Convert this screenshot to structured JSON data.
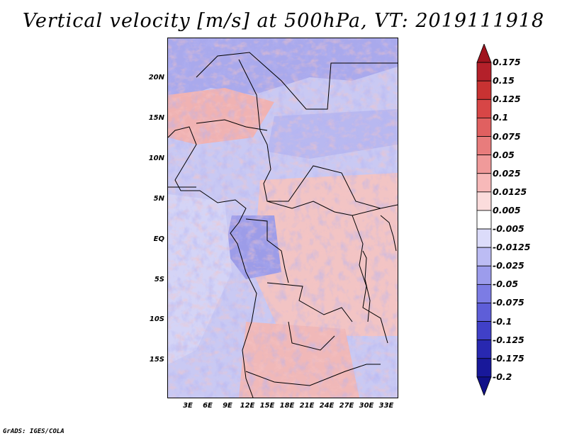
{
  "title": "Vertical velocity [m/s] at 500hPa, VT: 2019111918",
  "footer": "GrADS: IGES/COLA",
  "map": {
    "lat_labels": [
      "20N",
      "15N",
      "10N",
      "5N",
      "EQ",
      "5S",
      "10S",
      "15S"
    ],
    "lon_labels": [
      "3E",
      "6E",
      "9E",
      "12E",
      "15E",
      "18E",
      "21E",
      "24E",
      "27E",
      "30E",
      "33E"
    ]
  },
  "colorbar": {
    "labels": [
      "0.175",
      "0.15",
      "0.125",
      "0.1",
      "0.075",
      "0.05",
      "0.025",
      "0.0125",
      "0.005",
      "-0.005",
      "-0.0125",
      "-0.025",
      "-0.05",
      "-0.075",
      "-0.1",
      "-0.125",
      "-0.175",
      "-0.2"
    ],
    "colors": [
      "#a0141e",
      "#b4202a",
      "#c83232",
      "#d74646",
      "#e06060",
      "#e87c7c",
      "#f09a9a",
      "#f7b9b9",
      "#fbdcdc",
      "#ffffff",
      "#dcdcfa",
      "#bcbcf4",
      "#9c9cec",
      "#7c7ce4",
      "#5e5ed8",
      "#4040c8",
      "#2828b0",
      "#18189a",
      "#101088"
    ]
  }
}
